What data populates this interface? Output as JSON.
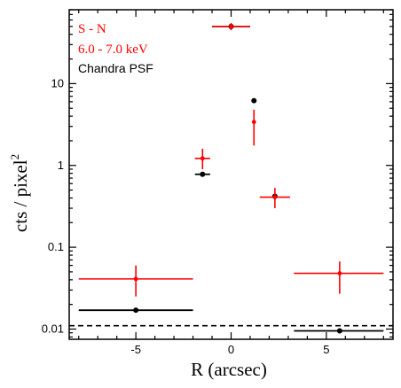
{
  "chart_data": {
    "type": "scatter",
    "xlabel": "R (arcsec)",
    "ylabel": "cts / pixel",
    "ylabel_superscript": "2",
    "xscale": "linear",
    "yscale": "log",
    "xlim": [
      -8.5,
      8.5
    ],
    "ylim": [
      0.0075,
      80
    ],
    "x_ticks": [
      {
        "value": -5,
        "label": "-5"
      },
      {
        "value": 0,
        "label": "0"
      },
      {
        "value": 5,
        "label": "5"
      }
    ],
    "y_ticks": [
      {
        "value": 0.01,
        "label": "0.01"
      },
      {
        "value": 0.1,
        "label": "0.1"
      },
      {
        "value": 1,
        "label": "1"
      },
      {
        "value": 10,
        "label": "10"
      }
    ],
    "legend": {
      "placement": "top-left",
      "entries": [
        {
          "text": "S - N",
          "color": "#ff0000"
        },
        {
          "text": "6.0 - 7.0 keV",
          "color": "#ff0000"
        },
        {
          "text": "Chandra PSF",
          "color": "#000000"
        }
      ]
    },
    "reference_line": {
      "y": 0.011,
      "style": "dashed",
      "color": "#000000"
    },
    "series": [
      {
        "color": "#000000",
        "points": [
          {
            "x": -5.0,
            "xmin": -8.0,
            "xmax": -2.0,
            "y": 0.017
          },
          {
            "x": -1.5,
            "xmin": -1.9,
            "xmax": -1.1,
            "y": 0.78
          },
          {
            "x": 0.0,
            "xmin": -1.0,
            "xmax": 1.0,
            "y": 50
          },
          {
            "x": 1.2,
            "xmin": 1.2,
            "xmax": 1.2,
            "y": 6.2
          },
          {
            "x": 2.3,
            "xmin": 2.3,
            "xmax": 2.3,
            "y": 0.42
          },
          {
            "x": 5.7,
            "xmin": 3.3,
            "xmax": 8.0,
            "y": 0.0095
          }
        ]
      },
      {
        "color": "#ff0000",
        "points": [
          {
            "x": -5.0,
            "xmin": -8.0,
            "xmax": -2.0,
            "y": 0.041,
            "ylo": 0.025,
            "yhi": 0.06
          },
          {
            "x": -1.5,
            "xmin": -1.9,
            "xmax": -1.1,
            "y": 1.22,
            "ylo": 0.9,
            "yhi": 1.6
          },
          {
            "x": 0.0,
            "xmin": -1.0,
            "xmax": 1.0,
            "y": 50,
            "ylo": 45,
            "yhi": 55
          },
          {
            "x": 1.2,
            "xmin": 1.2,
            "xmax": 1.2,
            "y": 3.4,
            "ylo": 1.75,
            "yhi": 4.8
          },
          {
            "x": 2.3,
            "xmin": 1.5,
            "xmax": 3.1,
            "y": 0.41,
            "ylo": 0.3,
            "yhi": 0.53
          },
          {
            "x": 5.7,
            "xmin": 3.3,
            "xmax": 8.0,
            "y": 0.048,
            "ylo": 0.027,
            "yhi": 0.067
          }
        ]
      }
    ]
  }
}
